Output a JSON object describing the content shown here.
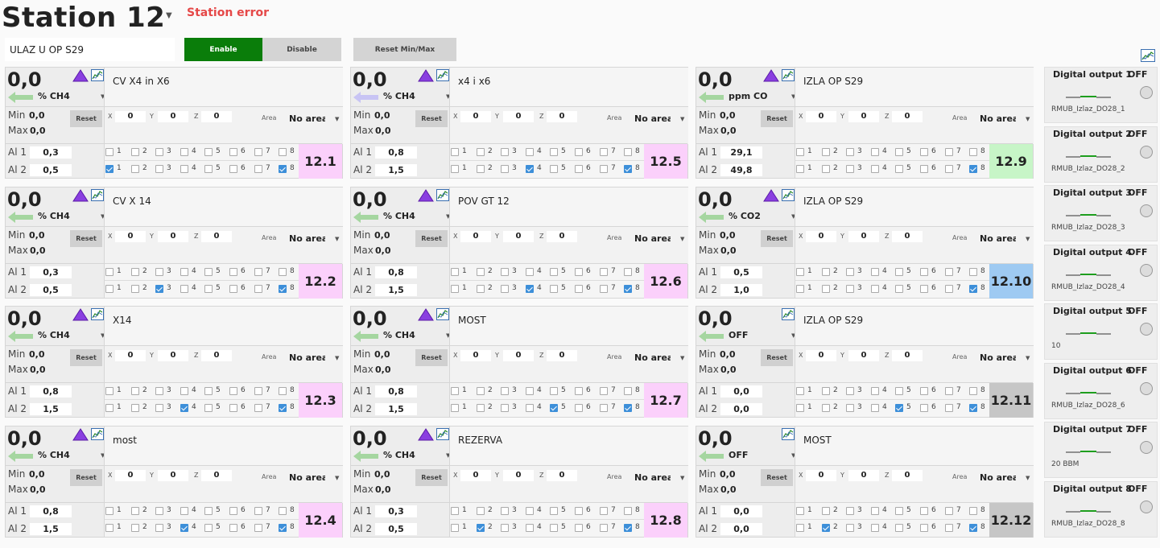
{
  "header": {
    "title": "Station 12",
    "status": "Station error",
    "station_name": "ULAZ U OP S29"
  },
  "toolbar": {
    "enable_label": "Enable",
    "disable_label": "Disable",
    "reset_minmax_label": "Reset Min/Max"
  },
  "colors": {
    "enable": "#0a7d0a",
    "status": "#e54848",
    "id_pink": "#fbd0fb",
    "id_green": "#c7f5c7",
    "id_blue": "#9ecaf2",
    "id_gray": "#c6c6c6",
    "arrow_green": "#a5d6a0",
    "arrow_purple": "#c8c4f4"
  },
  "labels": {
    "min": "Min",
    "max": "Max",
    "reset": "Reset",
    "x": "X",
    "y": "Y",
    "z": "Z",
    "area": "Area",
    "al1": "Al 1",
    "al2": "Al 2"
  },
  "sensors": [
    {
      "id": "12.1",
      "value": "0,0",
      "unit": "% CH4",
      "desc": "CV X4 in X6",
      "arrow": "green",
      "tri": true,
      "min": "0,0",
      "max": "0,0",
      "x": "0",
      "y": "0",
      "z": "0",
      "area": "No area",
      "al1": "0,3",
      "al2": "0,5",
      "cb1": [],
      "cb2": [
        1,
        8
      ],
      "id_color": "pink"
    },
    {
      "id": "12.2",
      "value": "0,0",
      "unit": "% CH4",
      "desc": "CV X 14",
      "arrow": "green",
      "tri": true,
      "min": "0,0",
      "max": "0,0",
      "x": "0",
      "y": "0",
      "z": "0",
      "area": "No area",
      "al1": "0,3",
      "al2": "0,5",
      "cb1": [],
      "cb2": [
        3,
        8
      ],
      "id_color": "pink"
    },
    {
      "id": "12.3",
      "value": "0,0",
      "unit": "% CH4",
      "desc": "X14",
      "arrow": "green",
      "tri": true,
      "min": "0,0",
      "max": "0,0",
      "x": "0",
      "y": "0",
      "z": "0",
      "area": "No area",
      "al1": "0,8",
      "al2": "1,5",
      "cb1": [],
      "cb2": [
        4,
        8
      ],
      "id_color": "pink"
    },
    {
      "id": "12.4",
      "value": "0,0",
      "unit": "% CH4",
      "desc": "most",
      "arrow": "green",
      "tri": true,
      "min": "0,0",
      "max": "0,0",
      "x": "0",
      "y": "0",
      "z": "0",
      "area": "No area",
      "al1": "0,8",
      "al2": "1,5",
      "cb1": [],
      "cb2": [
        4,
        8
      ],
      "id_color": "pink"
    },
    {
      "id": "12.5",
      "value": "0,0",
      "unit": "% CH4",
      "desc": "x4 i x6",
      "arrow": "purple",
      "tri": true,
      "min": "0,0",
      "max": "0,0",
      "x": "0",
      "y": "0",
      "z": "0",
      "area": "No area",
      "al1": "0,8",
      "al2": "1,5",
      "cb1": [],
      "cb2": [
        4,
        8
      ],
      "id_color": "pink"
    },
    {
      "id": "12.6",
      "value": "0,0",
      "unit": "% CH4",
      "desc": "POV GT 12",
      "arrow": "green",
      "tri": true,
      "min": "0,0",
      "max": "0,0",
      "x": "0",
      "y": "0",
      "z": "0",
      "area": "No area",
      "al1": "0,8",
      "al2": "1,5",
      "cb1": [],
      "cb2": [
        4,
        8
      ],
      "id_color": "pink"
    },
    {
      "id": "12.7",
      "value": "0,0",
      "unit": "% CH4",
      "desc": "MOST",
      "arrow": "green",
      "tri": true,
      "min": "0,0",
      "max": "0,0",
      "x": "0",
      "y": "0",
      "z": "0",
      "area": "No area",
      "al1": "0,8",
      "al2": "1,5",
      "cb1": [],
      "cb2": [
        5,
        8
      ],
      "id_color": "pink"
    },
    {
      "id": "12.8",
      "value": "0,0",
      "unit": "% CH4",
      "desc": "REZERVA",
      "arrow": "green",
      "tri": true,
      "min": "0,0",
      "max": "0,0",
      "x": "0",
      "y": "0",
      "z": "0",
      "area": "No area",
      "al1": "0,3",
      "al2": "0,5",
      "cb1": [],
      "cb2": [
        2,
        8
      ],
      "id_color": "pink"
    },
    {
      "id": "12.9",
      "value": "0,0",
      "unit": "ppm CO",
      "desc": "IZLA OP S29",
      "arrow": "green",
      "tri": true,
      "min": "0,0",
      "max": "0,0",
      "x": "0",
      "y": "0",
      "z": "0",
      "area": "No area",
      "al1": "29,1",
      "al2": "49,8",
      "cb1": [],
      "cb2": [
        8
      ],
      "id_color": "green"
    },
    {
      "id": "12.10",
      "value": "0,0",
      "unit": "% CO2",
      "desc": "IZLA OP S29",
      "arrow": "green",
      "tri": true,
      "min": "0,0",
      "max": "0,0",
      "x": "0",
      "y": "0",
      "z": "0",
      "area": "No area",
      "al1": "0,5",
      "al2": "1,0",
      "cb1": [],
      "cb2": [
        8
      ],
      "id_color": "blue"
    },
    {
      "id": "12.11",
      "value": "0,0",
      "unit": "OFF",
      "desc": "IZLA OP S29",
      "arrow": "green",
      "tri": false,
      "min": "0,0",
      "max": "0,0",
      "x": "0",
      "y": "0",
      "z": "0",
      "area": "No area",
      "al1": "0,0",
      "al2": "0,0",
      "cb1": [],
      "cb2": [
        5,
        8
      ],
      "id_color": "gray"
    },
    {
      "id": "12.12",
      "value": "0,0",
      "unit": "OFF",
      "desc": "MOST",
      "arrow": "green",
      "tri": false,
      "min": "0,0",
      "max": "0,0",
      "x": "0",
      "y": "0",
      "z": "0",
      "area": "No area",
      "al1": "0,0",
      "al2": "0,0",
      "cb1": [],
      "cb2": [
        2,
        8
      ],
      "id_color": "gray"
    }
  ],
  "outputs": [
    {
      "title": "Digital output 1",
      "state": "OFF",
      "sub": "RMUB_Izlaz_DO28_1"
    },
    {
      "title": "Digital output 2",
      "state": "OFF",
      "sub": "RMUB_Izlaz_DO28_2"
    },
    {
      "title": "Digital output 3",
      "state": "OFF",
      "sub": "RMUB_Izlaz_DO28_3"
    },
    {
      "title": "Digital output 4",
      "state": "OFF",
      "sub": "RMUB_Izlaz_DO28_4"
    },
    {
      "title": "Digital output 5",
      "state": "OFF",
      "sub": "10"
    },
    {
      "title": "Digital output 6",
      "state": "OFF",
      "sub": "RMUB_Izlaz_DO28_6"
    },
    {
      "title": "Digital output 7",
      "state": "OFF",
      "sub": "20 BBM"
    },
    {
      "title": "Digital output 8",
      "state": "OFF",
      "sub": "RMUB_Izlaz_DO28_8"
    }
  ]
}
